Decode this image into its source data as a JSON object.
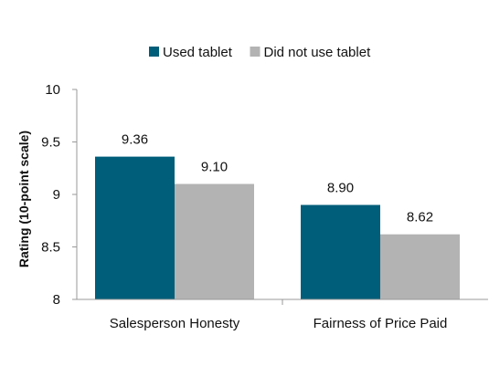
{
  "chart_data": {
    "type": "bar",
    "title": "",
    "xlabel": "",
    "ylabel": "Rating (10-point scale)",
    "categories": [
      "Salesperson Honesty",
      "Fairness of Price Paid"
    ],
    "series": [
      {
        "name": "Used tablet",
        "values": [
          9.36,
          8.9
        ],
        "labels": [
          "9.36",
          "8.90"
        ],
        "color": "#005e7a"
      },
      {
        "name": "Did not use tablet",
        "values": [
          9.1,
          8.62
        ],
        "labels": [
          "9.10",
          "8.62"
        ],
        "color": "#b3b3b3"
      }
    ],
    "ylim": [
      8,
      10
    ],
    "yticks": [
      8,
      8.5,
      9,
      9.5,
      10
    ],
    "ytick_labels": [
      "8",
      "8.5",
      "9",
      "9.5",
      "10"
    ],
    "grid": false,
    "legend_position": "top-center"
  }
}
